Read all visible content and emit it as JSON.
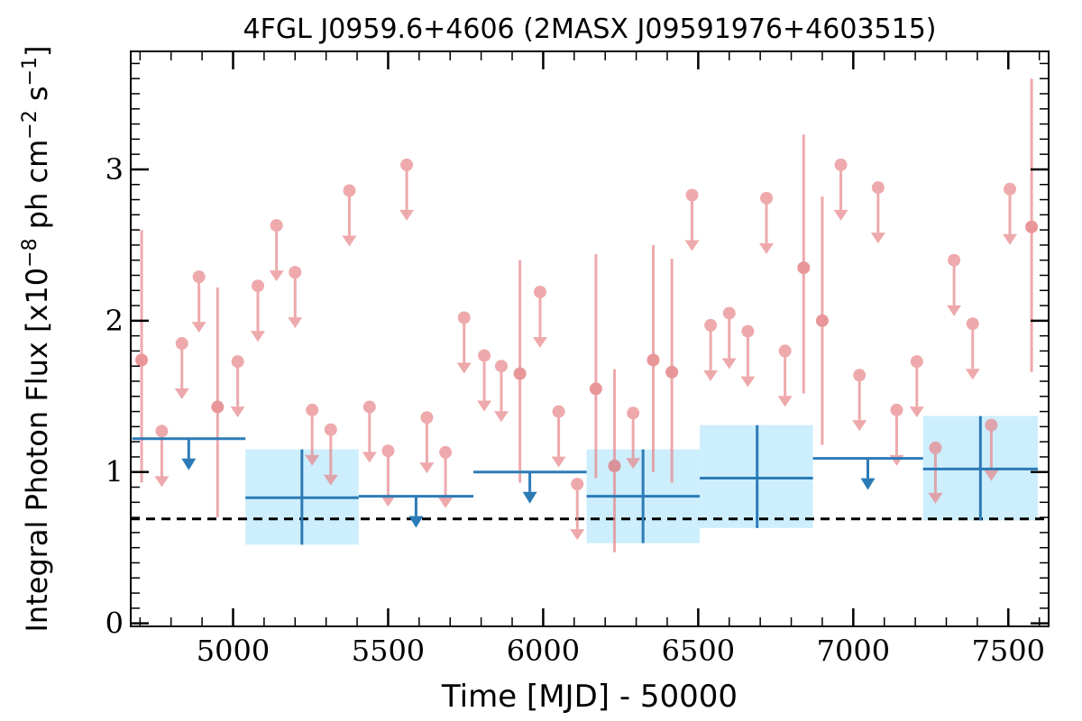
{
  "chart_data": {
    "type": "scatter",
    "title": "4FGL J0959.6+4606 (2MASX J09591976+4603515)",
    "xlabel": "Time [MJD] - 50000",
    "ylabel_prefix": "Integral Photon Flux [x10",
    "ylabel_exp1": "−8",
    "ylabel_mid": " ph cm",
    "ylabel_exp2": "−2",
    "ylabel_s": " s",
    "ylabel_exp3": "−1",
    "ylabel_suffix": "]",
    "xlim": [
      4670,
      7630
    ],
    "ylim": [
      -0.02,
      3.78
    ],
    "x_ticks": [
      5000,
      5500,
      6000,
      6500,
      7000,
      7500
    ],
    "x_tick_labels": [
      "5000",
      "5500",
      "6000",
      "6500",
      "7000",
      "7500"
    ],
    "y_ticks": [
      0,
      1,
      2,
      3
    ],
    "y_tick_labels": [
      "0",
      "1",
      "2",
      "3"
    ],
    "reference_level": 0.69,
    "colors": {
      "short_bin": "#e8868a",
      "long_bin": "#2c7bb6",
      "error_band": "#cdeefc",
      "reference_line": "#000000"
    },
    "short_bins": {
      "detections": [
        {
          "x": 4705,
          "y": 1.74,
          "lo": 0.93,
          "hi": 2.6
        },
        {
          "x": 4950,
          "y": 1.43,
          "lo": 0.7,
          "hi": 2.22
        },
        {
          "x": 5925,
          "y": 1.65,
          "lo": 0.93,
          "hi": 2.4
        },
        {
          "x": 6170,
          "y": 1.55,
          "lo": 0.96,
          "hi": 2.44
        },
        {
          "x": 6230,
          "y": 1.04,
          "lo": 0.47,
          "hi": 1.68
        },
        {
          "x": 6355,
          "y": 1.74,
          "lo": 1.0,
          "hi": 2.5
        },
        {
          "x": 6415,
          "y": 1.66,
          "lo": 0.93,
          "hi": 2.41
        },
        {
          "x": 6840,
          "y": 2.35,
          "lo": 1.52,
          "hi": 3.23
        },
        {
          "x": 6900,
          "y": 2.0,
          "lo": 1.18,
          "hi": 2.82
        },
        {
          "x": 7575,
          "y": 2.62,
          "lo": 1.66,
          "hi": 3.6
        }
      ],
      "upper_limits": [
        {
          "x": 4770,
          "y": 1.27
        },
        {
          "x": 4835,
          "y": 1.85
        },
        {
          "x": 4890,
          "y": 2.29
        },
        {
          "x": 5015,
          "y": 1.73
        },
        {
          "x": 5080,
          "y": 2.23
        },
        {
          "x": 5140,
          "y": 2.63
        },
        {
          "x": 5200,
          "y": 2.32
        },
        {
          "x": 5255,
          "y": 1.41
        },
        {
          "x": 5315,
          "y": 1.28
        },
        {
          "x": 5375,
          "y": 2.86
        },
        {
          "x": 5440,
          "y": 1.43
        },
        {
          "x": 5500,
          "y": 1.14
        },
        {
          "x": 5560,
          "y": 3.03
        },
        {
          "x": 5625,
          "y": 1.36
        },
        {
          "x": 5685,
          "y": 1.13
        },
        {
          "x": 5745,
          "y": 2.02
        },
        {
          "x": 5810,
          "y": 1.77
        },
        {
          "x": 5865,
          "y": 1.7
        },
        {
          "x": 5990,
          "y": 2.19
        },
        {
          "x": 6050,
          "y": 1.4
        },
        {
          "x": 6110,
          "y": 0.92
        },
        {
          "x": 6290,
          "y": 1.39
        },
        {
          "x": 6480,
          "y": 2.83
        },
        {
          "x": 6540,
          "y": 1.97
        },
        {
          "x": 6600,
          "y": 2.05
        },
        {
          "x": 6660,
          "y": 1.93
        },
        {
          "x": 6720,
          "y": 2.81
        },
        {
          "x": 6780,
          "y": 1.8
        },
        {
          "x": 6960,
          "y": 3.03
        },
        {
          "x": 7020,
          "y": 1.64
        },
        {
          "x": 7080,
          "y": 2.88
        },
        {
          "x": 7140,
          "y": 1.41
        },
        {
          "x": 7205,
          "y": 1.73
        },
        {
          "x": 7265,
          "y": 1.16
        },
        {
          "x": 7325,
          "y": 2.4
        },
        {
          "x": 7385,
          "y": 1.98
        },
        {
          "x": 7445,
          "y": 1.31
        },
        {
          "x": 7505,
          "y": 2.87
        }
      ]
    },
    "long_bins": {
      "detections": [
        {
          "x0": 5040,
          "x1": 5405,
          "xc": 5222,
          "y": 0.83,
          "lo": 0.52,
          "hi": 1.15
        },
        {
          "x0": 6140,
          "x1": 6505,
          "xc": 6322,
          "y": 0.84,
          "lo": 0.53,
          "hi": 1.15
        },
        {
          "x0": 6505,
          "x1": 6870,
          "xc": 6690,
          "y": 0.96,
          "lo": 0.63,
          "hi": 1.31
        },
        {
          "x0": 7225,
          "x1": 7595,
          "xc": 7410,
          "y": 1.02,
          "lo": 0.68,
          "hi": 1.37
        }
      ],
      "upper_limits": [
        {
          "x0": 4675,
          "x1": 5040,
          "xc": 4857,
          "y": 1.22
        },
        {
          "x0": 5405,
          "x1": 5775,
          "xc": 5590,
          "y": 0.84
        },
        {
          "x0": 5775,
          "x1": 6140,
          "xc": 5957,
          "y": 1.0
        },
        {
          "x0": 6870,
          "x1": 7225,
          "xc": 7047,
          "y": 1.09
        }
      ]
    }
  }
}
